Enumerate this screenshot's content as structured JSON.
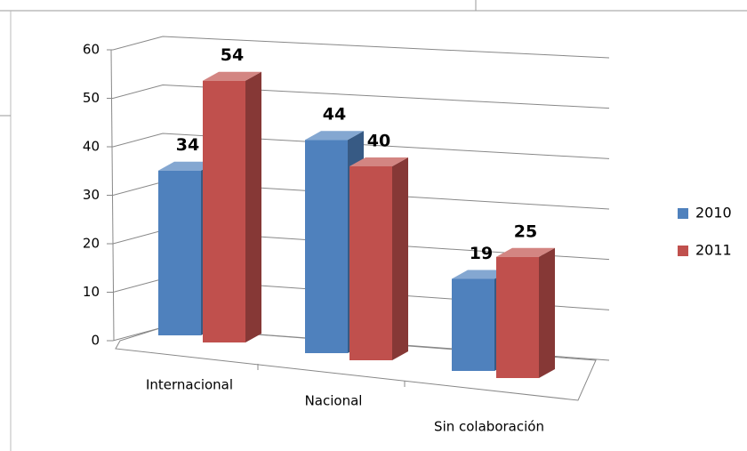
{
  "chart_data": {
    "type": "bar3d",
    "categories": [
      "Internacional",
      "Nacional",
      "Sin colaboración"
    ],
    "series": [
      {
        "name": "2010",
        "color": "#4f81bd",
        "values": [
          34,
          44,
          19
        ]
      },
      {
        "name": "2011",
        "color": "#c0504d",
        "values": [
          54,
          40,
          25
        ]
      }
    ],
    "ylim": [
      0,
      60
    ],
    "yticks": [
      0,
      10,
      20,
      30,
      40,
      50,
      60
    ],
    "grid": true,
    "legend": "right"
  }
}
